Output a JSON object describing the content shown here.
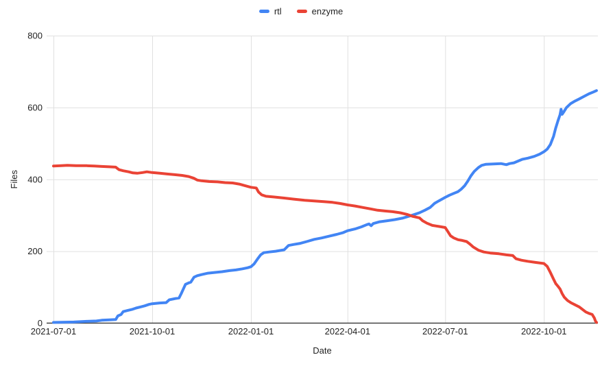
{
  "chart_data": {
    "type": "line",
    "title": "",
    "xlabel": "Date",
    "ylabel": "Files",
    "ylim": [
      0,
      800
    ],
    "y_ticks": [
      0,
      200,
      400,
      600,
      800
    ],
    "x_ticks": [
      "2021-07-01",
      "2021-10-01",
      "2022-01-01",
      "2022-04-01",
      "2022-07-01",
      "2022-10-01"
    ],
    "x_range": [
      "2021-07-01",
      "2022-11-19"
    ],
    "grid": true,
    "legend_position": "top-center",
    "series": [
      {
        "name": "rtl",
        "color": "#4285f4",
        "points": [
          [
            "2021-07-01",
            2
          ],
          [
            "2021-07-20",
            3
          ],
          [
            "2021-08-01",
            5
          ],
          [
            "2021-08-10",
            6
          ],
          [
            "2021-08-15",
            8
          ],
          [
            "2021-08-22",
            9
          ],
          [
            "2021-08-28",
            10
          ],
          [
            "2021-08-30",
            20
          ],
          [
            "2021-09-02",
            24
          ],
          [
            "2021-09-04",
            32
          ],
          [
            "2021-09-08",
            35
          ],
          [
            "2021-09-12",
            38
          ],
          [
            "2021-09-16",
            42
          ],
          [
            "2021-09-20",
            45
          ],
          [
            "2021-09-24",
            48
          ],
          [
            "2021-09-28",
            52
          ],
          [
            "2021-10-01",
            54
          ],
          [
            "2021-10-08",
            56
          ],
          [
            "2021-10-14",
            57
          ],
          [
            "2021-10-17",
            65
          ],
          [
            "2021-10-22",
            68
          ],
          [
            "2021-10-26",
            70
          ],
          [
            "2021-10-28",
            82
          ],
          [
            "2021-10-30",
            95
          ],
          [
            "2021-11-01",
            108
          ],
          [
            "2021-11-04",
            112
          ],
          [
            "2021-11-06",
            114
          ],
          [
            "2021-11-09",
            128
          ],
          [
            "2021-11-12",
            132
          ],
          [
            "2021-11-16",
            135
          ],
          [
            "2021-11-22",
            139
          ],
          [
            "2021-11-28",
            141
          ],
          [
            "2021-12-05",
            143
          ],
          [
            "2021-12-12",
            146
          ],
          [
            "2021-12-18",
            148
          ],
          [
            "2021-12-24",
            151
          ],
          [
            "2021-12-29",
            154
          ],
          [
            "2022-01-01",
            157
          ],
          [
            "2022-01-04",
            165
          ],
          [
            "2022-01-07",
            178
          ],
          [
            "2022-01-10",
            190
          ],
          [
            "2022-01-13",
            196
          ],
          [
            "2022-01-18",
            198
          ],
          [
            "2022-01-24",
            200
          ],
          [
            "2022-02-01",
            204
          ],
          [
            "2022-02-05",
            216
          ],
          [
            "2022-02-10",
            219
          ],
          [
            "2022-02-16",
            222
          ],
          [
            "2022-02-22",
            227
          ],
          [
            "2022-03-01",
            233
          ],
          [
            "2022-03-08",
            237
          ],
          [
            "2022-03-15",
            242
          ],
          [
            "2022-03-22",
            247
          ],
          [
            "2022-03-28",
            252
          ],
          [
            "2022-04-01",
            257
          ],
          [
            "2022-04-08",
            262
          ],
          [
            "2022-04-14",
            268
          ],
          [
            "2022-04-19",
            274
          ],
          [
            "2022-04-21",
            276
          ],
          [
            "2022-04-23",
            271
          ],
          [
            "2022-04-25",
            277
          ],
          [
            "2022-05-01",
            282
          ],
          [
            "2022-05-08",
            285
          ],
          [
            "2022-05-15",
            288
          ],
          [
            "2022-05-22",
            292
          ],
          [
            "2022-05-29",
            298
          ],
          [
            "2022-06-01",
            301
          ],
          [
            "2022-06-07",
            307
          ],
          [
            "2022-06-12",
            314
          ],
          [
            "2022-06-17",
            322
          ],
          [
            "2022-06-21",
            333
          ],
          [
            "2022-06-25",
            340
          ],
          [
            "2022-06-28",
            345
          ],
          [
            "2022-07-01",
            350
          ],
          [
            "2022-07-05",
            356
          ],
          [
            "2022-07-09",
            361
          ],
          [
            "2022-07-13",
            366
          ],
          [
            "2022-07-16",
            373
          ],
          [
            "2022-07-19",
            382
          ],
          [
            "2022-07-22",
            395
          ],
          [
            "2022-07-25",
            410
          ],
          [
            "2022-07-28",
            422
          ],
          [
            "2022-08-01",
            433
          ],
          [
            "2022-08-04",
            439
          ],
          [
            "2022-08-08",
            442
          ],
          [
            "2022-08-15",
            443
          ],
          [
            "2022-08-22",
            444
          ],
          [
            "2022-08-27",
            441
          ],
          [
            "2022-08-30",
            444
          ],
          [
            "2022-09-03",
            446
          ],
          [
            "2022-09-07",
            451
          ],
          [
            "2022-09-11",
            456
          ],
          [
            "2022-09-16",
            459
          ],
          [
            "2022-09-22",
            464
          ],
          [
            "2022-09-27",
            470
          ],
          [
            "2022-10-01",
            477
          ],
          [
            "2022-10-04",
            484
          ],
          [
            "2022-10-07",
            497
          ],
          [
            "2022-10-10",
            520
          ],
          [
            "2022-10-12",
            543
          ],
          [
            "2022-10-14",
            562
          ],
          [
            "2022-10-16",
            580
          ],
          [
            "2022-10-17",
            595
          ],
          [
            "2022-10-18",
            581
          ],
          [
            "2022-10-20",
            590
          ],
          [
            "2022-10-22",
            600
          ],
          [
            "2022-10-26",
            611
          ],
          [
            "2022-10-30",
            618
          ],
          [
            "2022-11-03",
            624
          ],
          [
            "2022-11-08",
            632
          ],
          [
            "2022-11-12",
            638
          ],
          [
            "2022-11-16",
            643
          ],
          [
            "2022-11-19",
            647
          ]
        ]
      },
      {
        "name": "enzyme",
        "color": "#ea4335",
        "points": [
          [
            "2021-07-01",
            437
          ],
          [
            "2021-07-08",
            438
          ],
          [
            "2021-07-14",
            439
          ],
          [
            "2021-07-22",
            438
          ],
          [
            "2021-08-01",
            438
          ],
          [
            "2021-08-08",
            437
          ],
          [
            "2021-08-15",
            436
          ],
          [
            "2021-08-22",
            435
          ],
          [
            "2021-08-28",
            434
          ],
          [
            "2021-08-31",
            427
          ],
          [
            "2021-09-04",
            424
          ],
          [
            "2021-09-09",
            421
          ],
          [
            "2021-09-13",
            418
          ],
          [
            "2021-09-17",
            417
          ],
          [
            "2021-09-22",
            419
          ],
          [
            "2021-09-26",
            421
          ],
          [
            "2021-10-01",
            419
          ],
          [
            "2021-10-08",
            417
          ],
          [
            "2021-10-15",
            415
          ],
          [
            "2021-10-22",
            413
          ],
          [
            "2021-10-29",
            411
          ],
          [
            "2021-11-04",
            408
          ],
          [
            "2021-11-09",
            403
          ],
          [
            "2021-11-12",
            398
          ],
          [
            "2021-11-16",
            396
          ],
          [
            "2021-11-23",
            394
          ],
          [
            "2021-12-01",
            393
          ],
          [
            "2021-12-08",
            391
          ],
          [
            "2021-12-15",
            390
          ],
          [
            "2021-12-21",
            387
          ],
          [
            "2021-12-27",
            382
          ],
          [
            "2022-01-01",
            378
          ],
          [
            "2022-01-06",
            376
          ],
          [
            "2022-01-08",
            365
          ],
          [
            "2022-01-11",
            357
          ],
          [
            "2022-01-15",
            353
          ],
          [
            "2022-01-22",
            351
          ],
          [
            "2022-02-01",
            348
          ],
          [
            "2022-02-10",
            345
          ],
          [
            "2022-02-20",
            342
          ],
          [
            "2022-03-01",
            340
          ],
          [
            "2022-03-10",
            338
          ],
          [
            "2022-03-18",
            336
          ],
          [
            "2022-03-25",
            333
          ],
          [
            "2022-04-01",
            329
          ],
          [
            "2022-04-08",
            326
          ],
          [
            "2022-04-15",
            322
          ],
          [
            "2022-04-22",
            318
          ],
          [
            "2022-04-29",
            314
          ],
          [
            "2022-05-06",
            312
          ],
          [
            "2022-05-13",
            310
          ],
          [
            "2022-05-20",
            307
          ],
          [
            "2022-05-27",
            302
          ],
          [
            "2022-06-01",
            297
          ],
          [
            "2022-06-07",
            293
          ],
          [
            "2022-06-10",
            285
          ],
          [
            "2022-06-14",
            278
          ],
          [
            "2022-06-19",
            272
          ],
          [
            "2022-06-25",
            269
          ],
          [
            "2022-07-01",
            266
          ],
          [
            "2022-07-03",
            257
          ],
          [
            "2022-07-06",
            243
          ],
          [
            "2022-07-09",
            237
          ],
          [
            "2022-07-13",
            232
          ],
          [
            "2022-07-17",
            230
          ],
          [
            "2022-07-21",
            227
          ],
          [
            "2022-07-24",
            220
          ],
          [
            "2022-07-27",
            212
          ],
          [
            "2022-08-01",
            203
          ],
          [
            "2022-08-06",
            198
          ],
          [
            "2022-08-12",
            195
          ],
          [
            "2022-08-20",
            193
          ],
          [
            "2022-08-27",
            190
          ],
          [
            "2022-09-02",
            188
          ],
          [
            "2022-09-05",
            179
          ],
          [
            "2022-09-10",
            175
          ],
          [
            "2022-09-16",
            172
          ],
          [
            "2022-09-23",
            169
          ],
          [
            "2022-10-01",
            166
          ],
          [
            "2022-10-04",
            158
          ],
          [
            "2022-10-07",
            141
          ],
          [
            "2022-10-10",
            122
          ],
          [
            "2022-10-12",
            110
          ],
          [
            "2022-10-14",
            103
          ],
          [
            "2022-10-16",
            95
          ],
          [
            "2022-10-18",
            82
          ],
          [
            "2022-10-20",
            72
          ],
          [
            "2022-10-23",
            63
          ],
          [
            "2022-10-26",
            57
          ],
          [
            "2022-10-30",
            51
          ],
          [
            "2022-11-03",
            45
          ],
          [
            "2022-11-06",
            38
          ],
          [
            "2022-11-09",
            31
          ],
          [
            "2022-11-12",
            27
          ],
          [
            "2022-11-15",
            24
          ],
          [
            "2022-11-17",
            14
          ],
          [
            "2022-11-18",
            6
          ],
          [
            "2022-11-19",
            2
          ]
        ]
      }
    ]
  }
}
